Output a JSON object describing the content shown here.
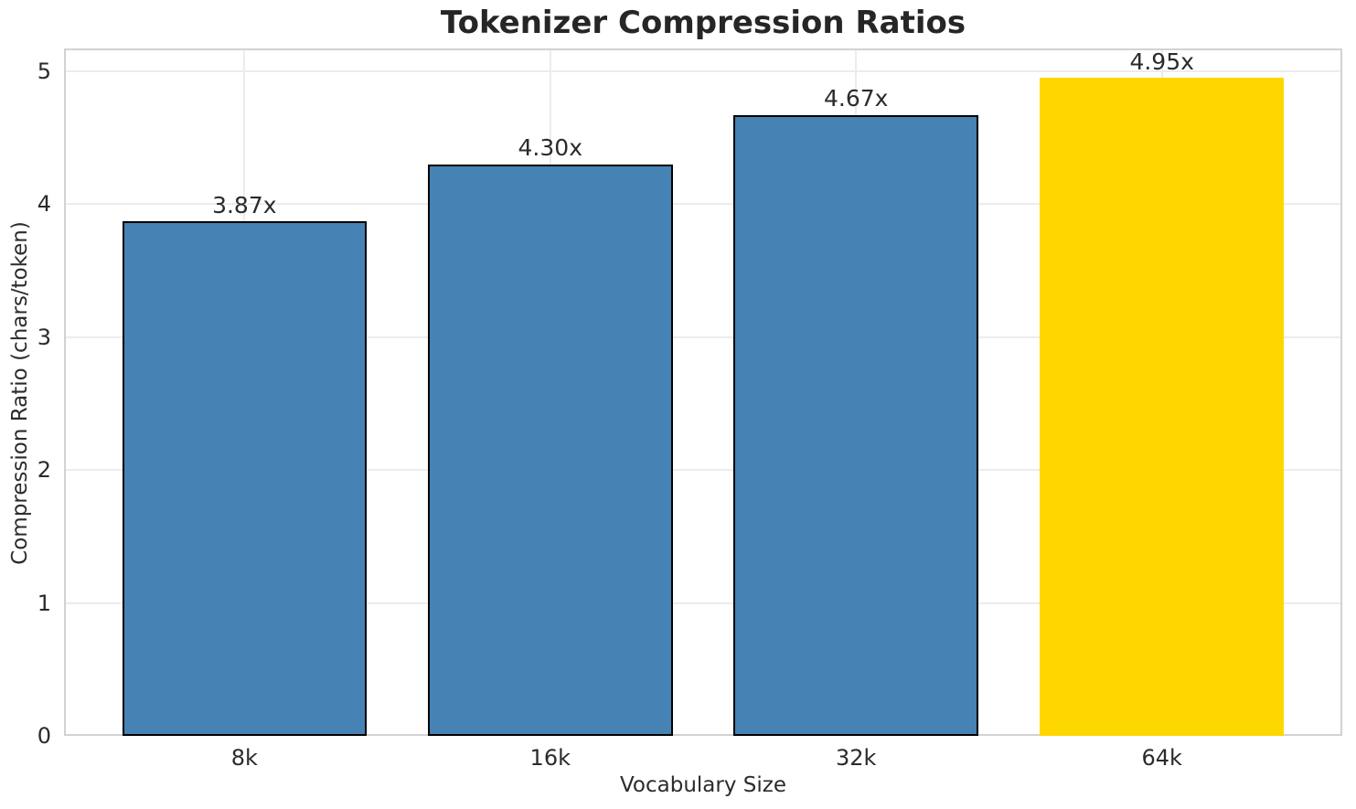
{
  "chart_data": {
    "type": "bar",
    "title": "Tokenizer Compression Ratios",
    "xlabel": "Vocabulary Size",
    "ylabel": "Compression Ratio (chars/token)",
    "categories": [
      "8k",
      "16k",
      "32k",
      "64k"
    ],
    "values": [
      3.87,
      4.3,
      4.67,
      4.95
    ],
    "bar_labels": [
      "3.87x",
      "4.30x",
      "4.67x",
      "4.95x"
    ],
    "bar_colors": [
      "#4682B4",
      "#4682B4",
      "#4682B4",
      "#FFD700"
    ],
    "bar_edge_colors": [
      "#000000",
      "#000000",
      "#000000",
      "none"
    ],
    "y_ticks": [
      "0",
      "1",
      "2",
      "3",
      "4",
      "5"
    ],
    "y_tick_values": [
      0,
      1,
      2,
      3,
      4,
      5
    ],
    "ylim": [
      0,
      5.17
    ],
    "xlim": [
      -0.59,
      3.59
    ],
    "bar_width": 0.8,
    "grid": true,
    "legend": "none",
    "accent_color": "#4682B4",
    "highlight_color": "#FFD700",
    "grid_color": "#ececec",
    "spine_color": "#d2d2d2",
    "text_color": "#2b2b2b"
  }
}
